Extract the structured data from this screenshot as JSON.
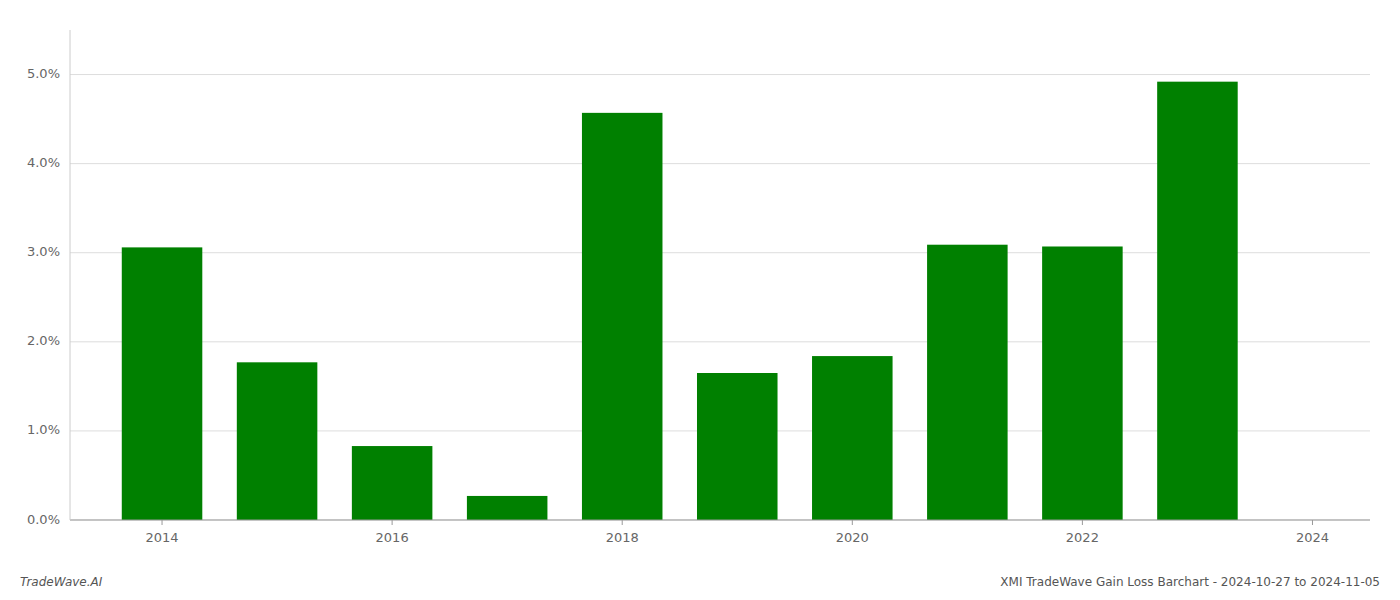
{
  "chart_data": {
    "type": "bar",
    "x": [
      2014,
      2015,
      2016,
      2017,
      2018,
      2019,
      2020,
      2021,
      2022,
      2023
    ],
    "values": [
      0.0306,
      0.0177,
      0.0083,
      0.0027,
      0.0457,
      0.0165,
      0.0184,
      0.0309,
      0.0307,
      0.0492
    ],
    "color": "#008000",
    "xlim": [
      2013.2,
      2024.5
    ],
    "xticks": [
      2014,
      2016,
      2018,
      2020,
      2022,
      2024
    ],
    "ylim": [
      0,
      0.055
    ],
    "yticks": [
      {
        "value": 0.0,
        "label": "0.0%"
      },
      {
        "value": 0.01,
        "label": "1.0%"
      },
      {
        "value": 0.02,
        "label": "2.0%"
      },
      {
        "value": 0.03,
        "label": "3.0%"
      },
      {
        "value": 0.04,
        "label": "4.0%"
      },
      {
        "value": 0.05,
        "label": "5.0%"
      }
    ],
    "grid": true,
    "annotations": [
      "TradeWave.AI",
      "XMI TradeWave Gain Loss Barchart - 2024-10-27 to 2024-11-05"
    ]
  }
}
